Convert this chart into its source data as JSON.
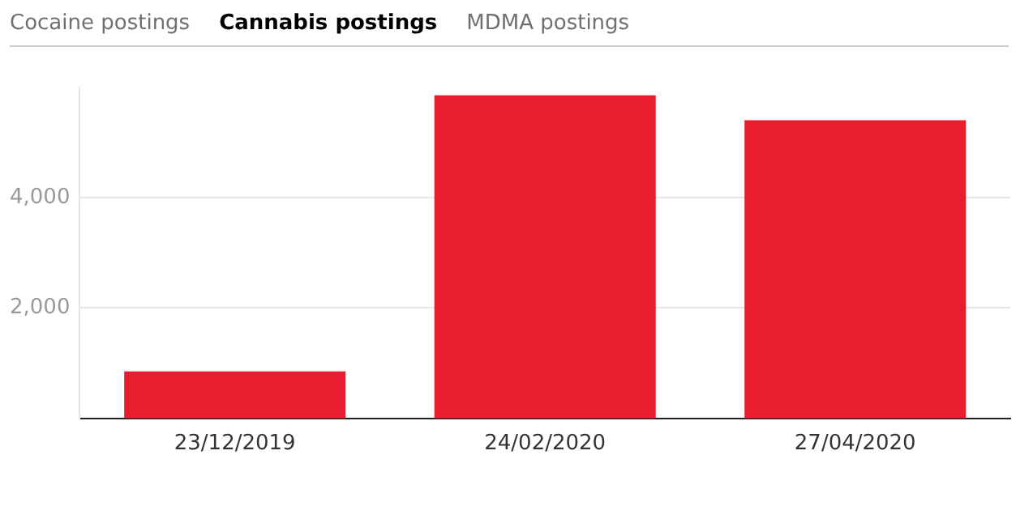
{
  "chart_data": {
    "type": "bar",
    "title": "Cannabis postings",
    "annotations": [
      "Cocaine postings",
      "MDMA postings"
    ],
    "categories": [
      "23/12/2019",
      "24/02/2020",
      "27/04/2020"
    ],
    "values": [
      850,
      5850,
      5400
    ],
    "color": "#ea1c2f",
    "ylim": [
      0,
      6000
    ],
    "yticks": [
      {
        "value": 2000,
        "label": "2,000"
      },
      {
        "value": 4000,
        "label": "4,000"
      }
    ],
    "grid": "y",
    "legend": false
  }
}
